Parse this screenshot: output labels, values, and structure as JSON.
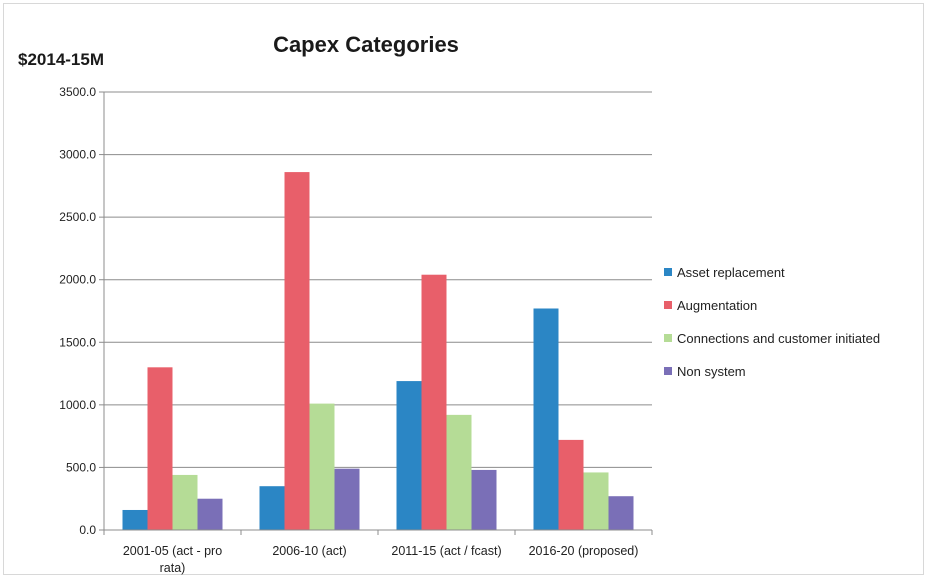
{
  "chart_data": {
    "type": "bar",
    "title": "Capex Categories",
    "ylabel": "$2014-15M",
    "xlabel": "",
    "categories": [
      [
        "2001-05 (act - pro",
        "rata)"
      ],
      [
        "2006-10 (act)"
      ],
      [
        "2011-15 (act / fcast)"
      ],
      [
        "2016-20 (proposed)"
      ]
    ],
    "ylim": [
      0,
      3500
    ],
    "yticks": [
      "0.0",
      "500.0",
      "1000.0",
      "1500.0",
      "2000.0",
      "2500.0",
      "3000.0",
      "3500.0"
    ],
    "grid": true,
    "legend_position": "right",
    "series": [
      {
        "name": "Asset replacement",
        "color": "#2b86c5",
        "values": [
          160,
          350,
          1190,
          1770
        ]
      },
      {
        "name": "Augmentation",
        "color": "#e85f6a",
        "values": [
          1300,
          2860,
          2040,
          720
        ]
      },
      {
        "name": "Connections and customer initiated",
        "color": "#b5dc96",
        "values": [
          440,
          1010,
          920,
          460
        ]
      },
      {
        "name": "Non system",
        "color": "#7a6fb7",
        "values": [
          250,
          490,
          480,
          270
        ]
      }
    ]
  }
}
